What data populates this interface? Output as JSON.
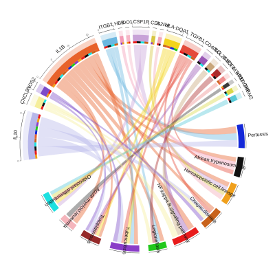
{
  "sectors": [
    {
      "id": "IL1B",
      "label": "IL1B",
      "type": "gene",
      "color": "#e8622a",
      "ticks": [
        "0",
        "5",
        "10",
        "15"
      ]
    },
    {
      "id": "ITGB2",
      "label": "ITGB2",
      "type": "gene",
      "color": "#6bb7e0",
      "ticks": [
        "0",
        "5"
      ]
    },
    {
      "id": "HBB",
      "label": "HBB",
      "type": "gene",
      "color": "#f39bb5",
      "ticks": []
    },
    {
      "id": "IDO1",
      "label": "IDO1",
      "type": "gene",
      "color": "#f6b5c6",
      "ticks": []
    },
    {
      "id": "CSF1R",
      "label": "CSF1R",
      "type": "gene",
      "color": "#c8a2d8",
      "ticks": [
        "0",
        "5"
      ]
    },
    {
      "id": "CD4",
      "label": "CD4",
      "type": "gene",
      "color": "#d7c640",
      "ticks": []
    },
    {
      "id": "IL2RA",
      "label": "IL2RA",
      "type": "gene",
      "color": "#f2a9b7",
      "ticks": []
    },
    {
      "id": "HLA-DQA1",
      "label": "HLA-DQA1",
      "type": "gene",
      "color": "#f3d31c",
      "ticks": [
        "0",
        "5"
      ]
    },
    {
      "id": "TGFB1",
      "label": "TGFB1",
      "type": "gene",
      "color": "#e44a3a",
      "ticks": [
        "0",
        "5"
      ]
    },
    {
      "id": "CD40LG",
      "label": "CD40LG",
      "type": "gene",
      "color": "#9b59b6",
      "ticks": []
    },
    {
      "id": "BCL2A1",
      "label": "BCL2A1",
      "type": "gene",
      "color": "#c9a67a",
      "ticks": []
    },
    {
      "id": "CXCL1",
      "label": "CXCL1",
      "type": "gene",
      "color": "#ab2a2a",
      "ticks": []
    },
    {
      "id": "EIF4EBP1",
      "label": "EIF4EBP1",
      "type": "gene",
      "color": "#ef8f8f",
      "ticks": []
    },
    {
      "id": "PIM2",
      "label": "PIM2",
      "type": "gene",
      "color": "#3a3a3a",
      "ticks": []
    },
    {
      "id": "TYROBP",
      "label": "TYROBP",
      "type": "gene",
      "color": "#d8d84a",
      "ticks": []
    },
    {
      "id": "TREM2",
      "label": "TREM2",
      "type": "gene",
      "color": "#57c9d8",
      "ticks": []
    },
    {
      "id": "Pertussis",
      "label": "Pertussis",
      "type": "pathway",
      "color": "#1428d8",
      "ticks": []
    },
    {
      "id": "African.trypanosomiasis",
      "label": "African.trypanosomiasis",
      "type": "pathway",
      "color": "#101010",
      "ticks": []
    },
    {
      "id": "Hematopoietic.cell.lineage",
      "label": "Hematopoietic.cell.lineage",
      "type": "pathway",
      "color": "#f0a01c",
      "ticks": []
    },
    {
      "id": "Chagas.disease",
      "label": "Chagas.disease",
      "type": "pathway",
      "color": "#c8621c",
      "ticks": []
    },
    {
      "id": "NF.kappa.B.signaling.pathway",
      "label": "NF.kappa.B.signaling.pathway",
      "type": "pathway",
      "color": "#e81c1c",
      "ticks": []
    },
    {
      "id": "Legionellosis",
      "label": "Legionellosis",
      "type": "pathway",
      "color": "#22c81c",
      "ticks": []
    },
    {
      "id": "Tuberculosis",
      "label": "Tuberculosis",
      "type": "pathway",
      "color": "#8a3cc8",
      "ticks": []
    },
    {
      "id": "Toxoplasmosis",
      "label": "Toxoplasmosis",
      "type": "pathway",
      "color": "#962a2a",
      "ticks": []
    },
    {
      "id": "Acute.myeloid.leukemia",
      "label": "Acute.myeloid.leukemia",
      "type": "pathway",
      "color": "#f5b5bc",
      "ticks": []
    },
    {
      "id": "Osteoclast.differentiation",
      "label": "Osteoclast.differentiation",
      "type": "pathway",
      "color": "#1ce0e0",
      "ticks": []
    },
    {
      "id": "IL10",
      "label": "IL10",
      "type": "gene",
      "color": "#b7b7ea",
      "ticks": [
        "0",
        "4",
        "8"
      ]
    },
    {
      "id": "CXCL8",
      "label": "CXCL8",
      "type": "gene",
      "color": "#f5ee9b",
      "ticks": [
        "0",
        "4"
      ]
    },
    {
      "id": "NOS2",
      "label": "NOS2",
      "type": "gene",
      "color": "#7c4cc8",
      "ticks": [
        "0",
        "4"
      ]
    }
  ],
  "links": [
    [
      "IL1B",
      "Toxoplasmosis"
    ],
    [
      "IL1B",
      "Acute.myeloid.leukemia"
    ],
    [
      "IL1B",
      "Legionellosis"
    ],
    [
      "IL1B",
      "NF.kappa.B.signaling.pathway"
    ],
    [
      "IL1B",
      "Hematopoietic.cell.lineage"
    ],
    [
      "IL1B",
      "African.trypanosomiasis"
    ],
    [
      "IL1B",
      "Pertussis"
    ],
    [
      "IL1B",
      "Chagas.disease"
    ],
    [
      "IL1B",
      "Tuberculosis"
    ],
    [
      "ITGB2",
      "Pertussis"
    ],
    [
      "ITGB2",
      "Tuberculosis"
    ],
    [
      "ITGB2",
      "Legionellosis"
    ],
    [
      "HBB",
      "African.trypanosomiasis"
    ],
    [
      "IDO1",
      "African.trypanosomiasis"
    ],
    [
      "CSF1R",
      "Hematopoietic.cell.lineage"
    ],
    [
      "CSF1R",
      "Osteoclast.differentiation"
    ],
    [
      "CD4",
      "Hematopoietic.cell.lineage"
    ],
    [
      "IL2RA",
      "Hematopoietic.cell.lineage"
    ],
    [
      "HLA-DQA1",
      "Toxoplasmosis"
    ],
    [
      "HLA-DQA1",
      "Tuberculosis"
    ],
    [
      "HLA-DQA1",
      "Osteoclast.differentiation"
    ],
    [
      "TGFB1",
      "Chagas.disease"
    ],
    [
      "TGFB1",
      "Toxoplasmosis"
    ],
    [
      "TGFB1",
      "Tuberculosis"
    ],
    [
      "TGFB1",
      "Osteoclast.differentiation"
    ],
    [
      "TGFB1",
      "African.trypanosomiasis"
    ],
    [
      "CD40LG",
      "NF.kappa.B.signaling.pathway"
    ],
    [
      "CD40LG",
      "Toxoplasmosis"
    ],
    [
      "BCL2A1",
      "NF.kappa.B.signaling.pathway"
    ],
    [
      "CXCL1",
      "Legionellosis"
    ],
    [
      "EIF4EBP1",
      "Acute.myeloid.leukemia"
    ],
    [
      "PIM2",
      "Acute.myeloid.leukemia"
    ],
    [
      "TYROBP",
      "Osteoclast.differentiation"
    ],
    [
      "TREM2",
      "Osteoclast.differentiation"
    ],
    [
      "IL10",
      "Pertussis"
    ],
    [
      "IL10",
      "Tuberculosis"
    ],
    [
      "IL10",
      "Chagas.disease"
    ],
    [
      "IL10",
      "Toxoplasmosis"
    ],
    [
      "CXCL8",
      "Legionellosis"
    ],
    [
      "CXCL8",
      "Chagas.disease"
    ],
    [
      "CXCL8",
      "NF.kappa.B.signaling.pathway"
    ],
    [
      "NOS2",
      "Toxoplasmosis"
    ],
    [
      "NOS2",
      "Chagas.disease"
    ],
    [
      "NOS2",
      "Tuberculosis"
    ]
  ]
}
